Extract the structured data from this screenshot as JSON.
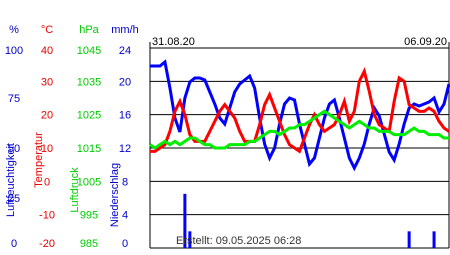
{
  "chart_data": {
    "type": "line",
    "date_labels": [
      "31.08.20",
      "06.09.20"
    ],
    "footer": "Erstellt: 09.05.2025 06:28",
    "grid": true,
    "axes": [
      {
        "unit": "%",
        "title": "Luftfeuchtigkeit",
        "color": "#0000cc",
        "lim": [
          0,
          100
        ],
        "ticks": [
          0,
          25,
          50,
          75,
          100
        ]
      },
      {
        "unit": "°C",
        "title": "Temperatur",
        "color": "#ee0000",
        "lim": [
          -20,
          40
        ],
        "ticks": [
          -20,
          -10,
          0,
          10,
          20,
          30,
          40
        ]
      },
      {
        "unit": "hPa",
        "title": "Luftdruck",
        "color": "#00cc00",
        "lim": [
          985,
          1045
        ],
        "ticks": [
          985,
          995,
          1005,
          1015,
          1025,
          1035,
          1045
        ]
      },
      {
        "unit": "mm/h",
        "title": "Niederschlag",
        "color": "#0000cc",
        "lim": [
          0,
          24
        ],
        "ticks": [
          0,
          4,
          8,
          12,
          16,
          20,
          24
        ]
      }
    ],
    "series": [
      {
        "name": "Luftfeuchtigkeit",
        "axis": 0,
        "kind": "line",
        "color": "#0000ff",
        "values": [
          91,
          91,
          91,
          93,
          80,
          65,
          58,
          75,
          83,
          85,
          85,
          84,
          78,
          72,
          65,
          62,
          70,
          78,
          82,
          84,
          86,
          80,
          65,
          52,
          45,
          50,
          62,
          72,
          75,
          74,
          62,
          52,
          42,
          45,
          55,
          65,
          72,
          74,
          65,
          55,
          45,
          40,
          45,
          52,
          62,
          70,
          66,
          57,
          48,
          44,
          52,
          62,
          70,
          72,
          71,
          72,
          73,
          75,
          68,
          72,
          82
        ]
      },
      {
        "name": "Temperatur",
        "axis": 1,
        "kind": "line",
        "color": "#ff0000",
        "values": [
          9,
          9,
          10,
          11,
          15,
          21,
          24,
          20,
          14,
          12,
          12,
          12,
          15,
          18,
          21,
          23,
          21,
          19,
          15,
          12,
          12,
          12,
          17,
          23,
          26,
          22,
          18,
          14,
          11,
          10,
          9,
          13,
          17,
          20,
          17,
          15,
          16,
          17,
          20,
          24,
          18,
          21,
          30,
          33,
          27,
          20,
          17,
          16,
          15,
          24,
          31,
          30,
          23,
          22,
          21,
          21,
          22,
          21,
          18,
          16,
          15
        ]
      },
      {
        "name": "Luftdruck",
        "axis": 2,
        "kind": "line",
        "color": "#00ee00",
        "values": [
          1016,
          1015,
          1016,
          1017,
          1016,
          1017,
          1016,
          1017,
          1018,
          1018,
          1017,
          1016,
          1016,
          1015,
          1015,
          1015,
          1016,
          1016,
          1016,
          1016,
          1017,
          1017,
          1018,
          1019,
          1020,
          1020,
          1019,
          1020,
          1021,
          1021,
          1022,
          1022,
          1023,
          1024,
          1025,
          1026,
          1025,
          1024,
          1023,
          1022,
          1021,
          1022,
          1023,
          1022,
          1021,
          1021,
          1020,
          1020,
          1020,
          1019,
          1019,
          1019,
          1020,
          1021,
          1020,
          1020,
          1019,
          1019,
          1019,
          1018,
          1018
        ]
      },
      {
        "name": "Niederschlag",
        "axis": 3,
        "kind": "bar",
        "color": "#0000ff",
        "values": [
          0,
          0,
          0,
          0,
          0,
          0,
          0,
          6.5,
          2,
          0,
          0,
          0,
          0,
          0,
          0,
          0,
          0,
          0,
          0,
          0,
          0,
          0,
          0,
          0,
          0,
          0,
          0,
          0,
          0,
          0,
          0,
          0,
          0,
          0,
          0,
          0,
          0,
          0,
          0,
          0,
          0,
          0,
          0,
          0,
          0,
          0,
          0,
          0,
          0,
          0,
          0,
          0,
          2,
          0,
          0,
          0,
          0,
          2,
          0,
          0,
          0
        ]
      }
    ]
  }
}
